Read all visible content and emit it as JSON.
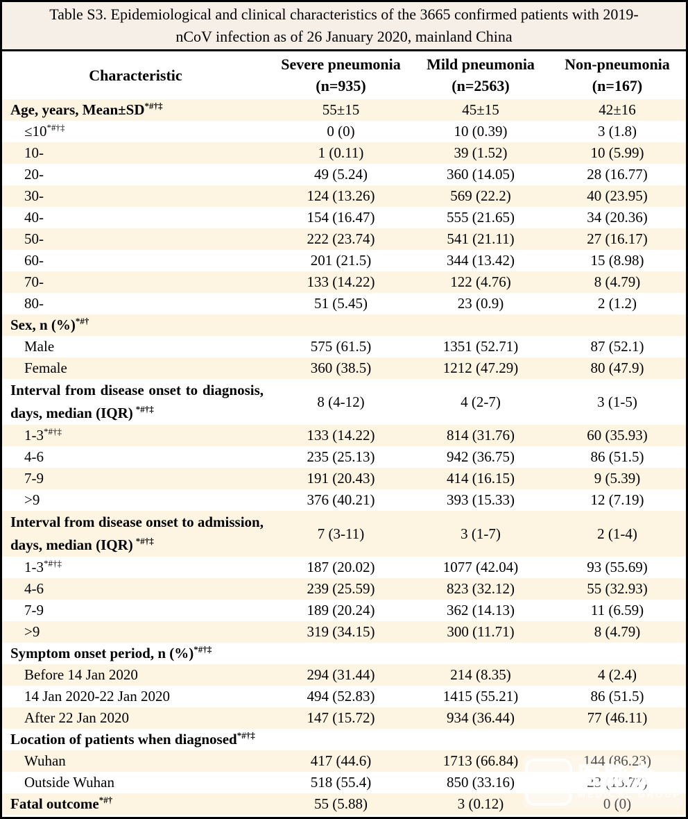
{
  "colors": {
    "row_stripe": "#fdf4e2",
    "title_background": "#f6efe8",
    "border": "#000000",
    "text": "#000000"
  },
  "table": {
    "title_line1": "Table S3. Epidemiological and clinical characteristics of the 3665 confirmed patients with 2019-",
    "title_line2": "nCoV infection as of 26 January 2020, mainland China",
    "header": {
      "characteristic": "Characteristic",
      "columns": [
        {
          "label": "Severe pneumonia",
          "n": "(n=935)"
        },
        {
          "label": "Mild pneumonia",
          "n": "(n=2563)"
        },
        {
          "label": "Non-pneumonia",
          "n": "(n=167)"
        }
      ]
    },
    "rows": [
      {
        "label": "Age, years, Mean±SD",
        "sup": "*#†‡",
        "bold": true,
        "indent": false,
        "justify": false,
        "values": [
          "55±15",
          "45±15",
          "42±16"
        ]
      },
      {
        "label": "≤10",
        "sup": "*#†‡",
        "bold": false,
        "indent": true,
        "justify": false,
        "values": [
          "0 (0)",
          "10 (0.39)",
          "3 (1.8)"
        ]
      },
      {
        "label": "10-",
        "sup": "",
        "bold": false,
        "indent": true,
        "justify": false,
        "values": [
          "1 (0.11)",
          "39 (1.52)",
          "10 (5.99)"
        ]
      },
      {
        "label": "20-",
        "sup": "",
        "bold": false,
        "indent": true,
        "justify": false,
        "values": [
          "49 (5.24)",
          "360 (14.05)",
          "28 (16.77)"
        ]
      },
      {
        "label": "30-",
        "sup": "",
        "bold": false,
        "indent": true,
        "justify": false,
        "values": [
          "124 (13.26)",
          "569 (22.2)",
          "40 (23.95)"
        ]
      },
      {
        "label": "40-",
        "sup": "",
        "bold": false,
        "indent": true,
        "justify": false,
        "values": [
          "154 (16.47)",
          "555 (21.65)",
          "34 (20.36)"
        ]
      },
      {
        "label": "50-",
        "sup": "",
        "bold": false,
        "indent": true,
        "justify": false,
        "values": [
          "222 (23.74)",
          "541 (21.11)",
          "27 (16.17)"
        ]
      },
      {
        "label": "60-",
        "sup": "",
        "bold": false,
        "indent": true,
        "justify": false,
        "values": [
          "201 (21.5)",
          "344 (13.42)",
          "15 (8.98)"
        ]
      },
      {
        "label": "70-",
        "sup": "",
        "bold": false,
        "indent": true,
        "justify": false,
        "values": [
          "133 (14.22)",
          "122 (4.76)",
          "8 (4.79)"
        ]
      },
      {
        "label": "80-",
        "sup": "",
        "bold": false,
        "indent": true,
        "justify": false,
        "values": [
          "51 (5.45)",
          "23 (0.9)",
          "2 (1.2)"
        ]
      },
      {
        "label": "Sex, n (%)",
        "sup": "*#†",
        "bold": true,
        "indent": false,
        "justify": false,
        "values": [
          "",
          "",
          ""
        ]
      },
      {
        "label": "Male",
        "sup": "",
        "bold": false,
        "indent": true,
        "justify": false,
        "values": [
          "575 (61.5)",
          "1351 (52.71)",
          "87 (52.1)"
        ]
      },
      {
        "label": "Female",
        "sup": "",
        "bold": false,
        "indent": true,
        "justify": false,
        "values": [
          "360 (38.5)",
          "1212 (47.29)",
          "80 (47.9)"
        ]
      },
      {
        "label": "Interval from disease onset to diagnosis, days, median (IQR)",
        "sup": "*#†‡",
        "bold": true,
        "indent": false,
        "justify": true,
        "values": [
          "8 (4-12)",
          "4 (2-7)",
          "3 (1-5)"
        ]
      },
      {
        "label": "1-3",
        "sup": "*#†‡",
        "bold": false,
        "indent": true,
        "justify": false,
        "values": [
          "133 (14.22)",
          "814 (31.76)",
          "60 (35.93)"
        ]
      },
      {
        "label": "4-6",
        "sup": "",
        "bold": false,
        "indent": true,
        "justify": false,
        "values": [
          "235 (25.13)",
          "942 (36.75)",
          "86 (51.5)"
        ]
      },
      {
        "label": "7-9",
        "sup": "",
        "bold": false,
        "indent": true,
        "justify": false,
        "values": [
          "191 (20.43)",
          "414 (16.15)",
          "9 (5.39)"
        ]
      },
      {
        "label": ">9",
        "sup": "",
        "bold": false,
        "indent": true,
        "justify": false,
        "values": [
          "376 (40.21)",
          "393 (15.33)",
          "12 (7.19)"
        ]
      },
      {
        "label": "Interval from disease onset to admission, days, median (IQR)",
        "sup": "*#†‡",
        "bold": true,
        "indent": false,
        "justify": true,
        "values": [
          "7 (3-11)",
          "3 (1-7)",
          "2 (1-4)"
        ]
      },
      {
        "label": "1-3",
        "sup": "*#†‡",
        "bold": false,
        "indent": true,
        "justify": false,
        "values": [
          "187 (20.02)",
          "1077 (42.04)",
          "93 (55.69)"
        ]
      },
      {
        "label": "4-6",
        "sup": "",
        "bold": false,
        "indent": true,
        "justify": false,
        "values": [
          "239 (25.59)",
          "823 (32.12)",
          "55 (32.93)"
        ]
      },
      {
        "label": "7-9",
        "sup": "",
        "bold": false,
        "indent": true,
        "justify": false,
        "values": [
          "189 (20.24)",
          "362 (14.13)",
          "11 (6.59)"
        ]
      },
      {
        "label": ">9",
        "sup": "",
        "bold": false,
        "indent": true,
        "justify": false,
        "values": [
          "319 (34.15)",
          "300 (11.71)",
          "8 (4.79)"
        ]
      },
      {
        "label": "Symptom onset period, n (%)",
        "sup": "*#†‡",
        "bold": true,
        "indent": false,
        "justify": false,
        "values": [
          "",
          "",
          ""
        ]
      },
      {
        "label": "Before 14 Jan 2020",
        "sup": "",
        "bold": false,
        "indent": true,
        "justify": false,
        "values": [
          "294 (31.44)",
          "214 (8.35)",
          "4 (2.4)"
        ]
      },
      {
        "label": "14 Jan 2020-22 Jan 2020",
        "sup": "",
        "bold": false,
        "indent": true,
        "justify": false,
        "values": [
          "494 (52.83)",
          "1415 (55.21)",
          "86 (51.5)"
        ]
      },
      {
        "label": "After 22 Jan 2020",
        "sup": "",
        "bold": false,
        "indent": true,
        "justify": false,
        "values": [
          "147 (15.72)",
          "934 (36.44)",
          "77 (46.11)"
        ]
      },
      {
        "label": "Location of patients when diagnosed",
        "sup": "*#†‡",
        "bold": true,
        "indent": false,
        "justify": false,
        "values": [
          "",
          "",
          ""
        ]
      },
      {
        "label": "Wuhan",
        "sup": "",
        "bold": false,
        "indent": true,
        "justify": false,
        "values": [
          "417 (44.6)",
          "1713 (66.84)",
          "144 (86.23)"
        ]
      },
      {
        "label": "Outside Wuhan",
        "sup": "",
        "bold": false,
        "indent": true,
        "justify": false,
        "values": [
          "518 (55.4)",
          "850 (33.16)",
          "23 (13.77)"
        ]
      },
      {
        "label": "Fatal outcome",
        "sup": "*#†",
        "bold": true,
        "indent": false,
        "justify": false,
        "values": [
          "55 (5.88)",
          "3 (0.12)",
          "0 (0)"
        ]
      }
    ]
  },
  "watermark": {
    "cjk_text": "医脉会",
    "subtitle": "MEDICAL GROUP"
  }
}
